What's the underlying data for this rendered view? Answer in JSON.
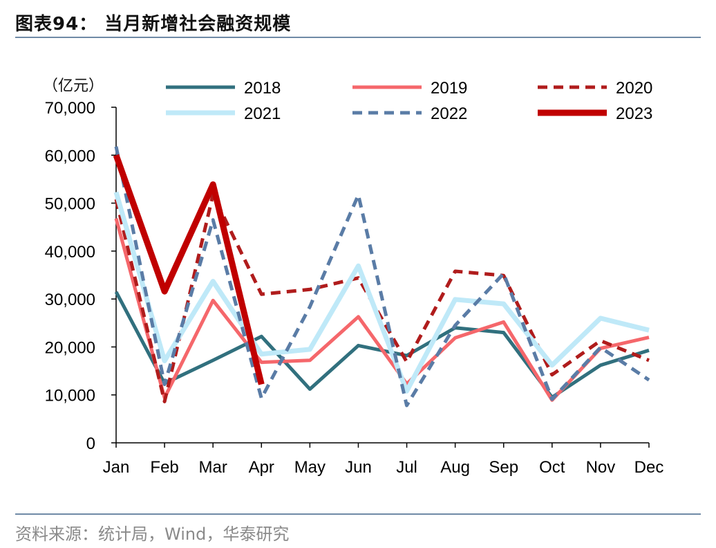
{
  "header": {
    "title": "图表94：  当月新增社会融资规模"
  },
  "footer": {
    "source": "资料来源：统计局，Wind，华泰研究"
  },
  "chart_data": {
    "type": "line",
    "unit_label": "（亿元）",
    "categories": [
      "Jan",
      "Feb",
      "Mar",
      "Apr",
      "May",
      "Jun",
      "Jul",
      "Aug",
      "Sep",
      "Oct",
      "Nov",
      "Dec"
    ],
    "ylim": [
      0,
      70000
    ],
    "yticks": [
      0,
      10000,
      20000,
      30000,
      40000,
      50000,
      60000,
      70000
    ],
    "ytick_labels": [
      "0",
      "10,000",
      "20,000",
      "30,000",
      "40,000",
      "50,000",
      "60,000",
      "70,000"
    ],
    "grid": false,
    "legend_position": "top",
    "series": [
      {
        "name": "2018",
        "color": "#31707e",
        "style": "solid",
        "width": 5,
        "values": [
          31500,
          12400,
          17200,
          22200,
          11200,
          20300,
          18200,
          24000,
          23000,
          9500,
          16200,
          19300
        ]
      },
      {
        "name": "2019",
        "color": "#f5676b",
        "style": "solid",
        "width": 5,
        "values": [
          46800,
          9400,
          29700,
          16800,
          17200,
          26300,
          12300,
          21900,
          25200,
          8900,
          19700,
          22000
        ]
      },
      {
        "name": "2020",
        "color": "#b01c1c",
        "style": "dashed",
        "width": 5,
        "values": [
          50800,
          8600,
          51800,
          31000,
          32000,
          34400,
          16900,
          35800,
          34900,
          14200,
          21300,
          17200
        ]
      },
      {
        "name": "2021",
        "color": "#bfe9f8",
        "style": "solid",
        "width": 7,
        "values": [
          52300,
          17100,
          33700,
          18500,
          19500,
          36900,
          10800,
          29900,
          29000,
          16200,
          26000,
          23500
        ]
      },
      {
        "name": "2022",
        "color": "#5a7ca6",
        "style": "dashed",
        "width": 5,
        "values": [
          61800,
          12200,
          46500,
          9300,
          28400,
          51700,
          7800,
          24500,
          35300,
          9100,
          19900,
          13100
        ]
      },
      {
        "name": "2023",
        "color": "#c00000",
        "style": "solid",
        "width": 9,
        "values": [
          60000,
          31600,
          53900,
          12200,
          null,
          null,
          null,
          null,
          null,
          null,
          null,
          null
        ]
      }
    ]
  }
}
